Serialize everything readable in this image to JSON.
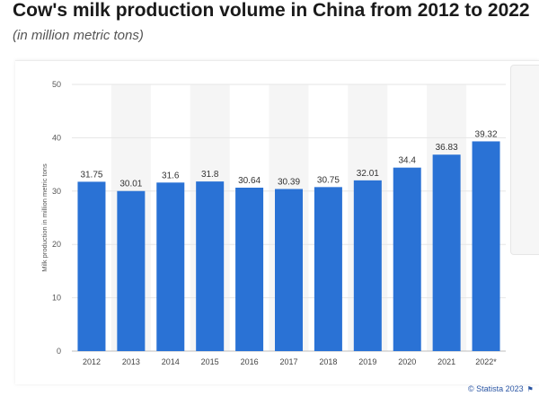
{
  "title": "Cow's milk production volume in China from 2012 to 2022",
  "subtitle": "(in million metric tons)",
  "credit": "© Statista 2023",
  "colors": {
    "bar": "#2a72d5",
    "grid": "#e6e6e6",
    "band": "#f5f5f5"
  },
  "chart_data": {
    "type": "bar",
    "categories": [
      "2012",
      "2013",
      "2014",
      "2015",
      "2016",
      "2017",
      "2018",
      "2019",
      "2020",
      "2021",
      "2022*"
    ],
    "values": [
      31.75,
      30.01,
      31.6,
      31.8,
      30.64,
      30.39,
      30.75,
      32.01,
      34.4,
      36.83,
      39.32
    ],
    "value_labels": [
      "31.75",
      "30.01",
      "31.6",
      "31.8",
      "30.64",
      "30.39",
      "30.75",
      "32.01",
      "34.4",
      "36.83",
      "39.32"
    ],
    "ylabel": "Milk production in million metric tons",
    "xlabel": "",
    "ylim": [
      0,
      50
    ],
    "yticks": [
      "0",
      "10",
      "20",
      "30",
      "40",
      "50"
    ],
    "grid": true
  }
}
